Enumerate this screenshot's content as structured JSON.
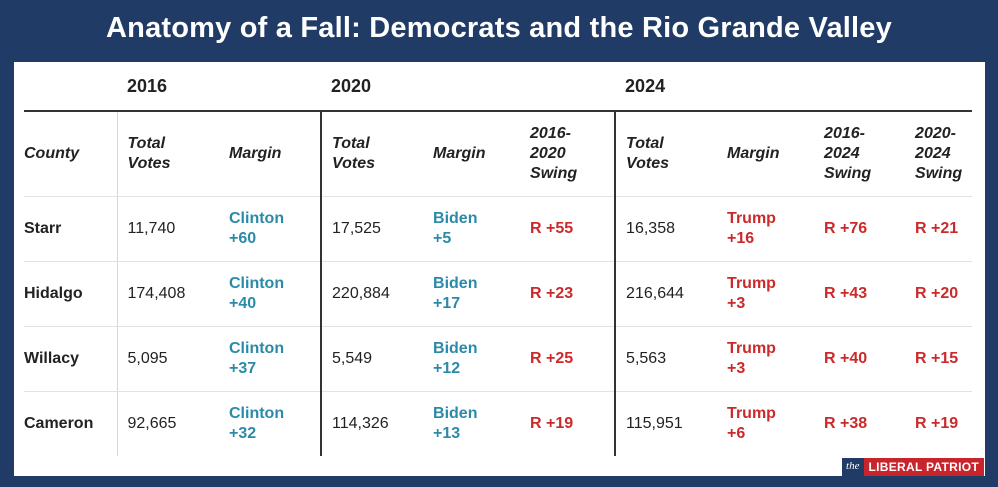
{
  "title": "Anatomy of a Fall: Democrats and the Rio Grande Valley",
  "years": [
    "2016",
    "2020",
    "2024"
  ],
  "headers": {
    "county": "County",
    "total_votes": [
      "Total",
      "Votes"
    ],
    "margin": "Margin",
    "swing_2016_2020": [
      "2016-",
      "2020",
      "Swing"
    ],
    "swing_2016_2024": [
      "2016-",
      "2024",
      "Swing"
    ],
    "swing_2020_2024": [
      "2020-",
      "2024",
      "Swing"
    ]
  },
  "rows": [
    {
      "county": "Starr",
      "votes_2016": "11,740",
      "margin_2016": [
        "Clinton",
        "+60"
      ],
      "votes_2020": "17,525",
      "margin_2020": [
        "Biden",
        "+5"
      ],
      "swing_16_20": "R +55",
      "votes_2024": "16,358",
      "margin_2024": [
        "Trump",
        "+16"
      ],
      "swing_16_24": "R +76",
      "swing_20_24": "R +21"
    },
    {
      "county": "Hidalgo",
      "votes_2016": "174,408",
      "margin_2016": [
        "Clinton",
        "+40"
      ],
      "votes_2020": "220,884",
      "margin_2020": [
        "Biden",
        "+17"
      ],
      "swing_16_20": "R +23",
      "votes_2024": "216,644",
      "margin_2024": [
        "Trump",
        "+3"
      ],
      "swing_16_24": "R +43",
      "swing_20_24": "R +20"
    },
    {
      "county": "Willacy",
      "votes_2016": "5,095",
      "margin_2016": [
        "Clinton",
        "+37"
      ],
      "votes_2020": "5,549",
      "margin_2020": [
        "Biden",
        "+12"
      ],
      "swing_16_20": "R +25",
      "votes_2024": "5,563",
      "margin_2024": [
        "Trump",
        "+3"
      ],
      "swing_16_24": "R +40",
      "swing_20_24": "R +15"
    },
    {
      "county": "Cameron",
      "votes_2016": "92,665",
      "margin_2016": [
        "Clinton",
        "+32"
      ],
      "votes_2020": "114,326",
      "margin_2020": [
        "Biden",
        "+13"
      ],
      "swing_16_20": "R +19",
      "votes_2024": "115,951",
      "margin_2024": [
        "Trump",
        "+6"
      ],
      "swing_16_24": "R +38",
      "swing_20_24": "R +19"
    }
  ],
  "logo": {
    "the": "the",
    "name": "LIBERAL PATRIOT"
  },
  "colors": {
    "background": "#1f3b66",
    "democrat": "#2b8aa8",
    "republican": "#cc2a2a",
    "logo_red": "#c8242b"
  }
}
